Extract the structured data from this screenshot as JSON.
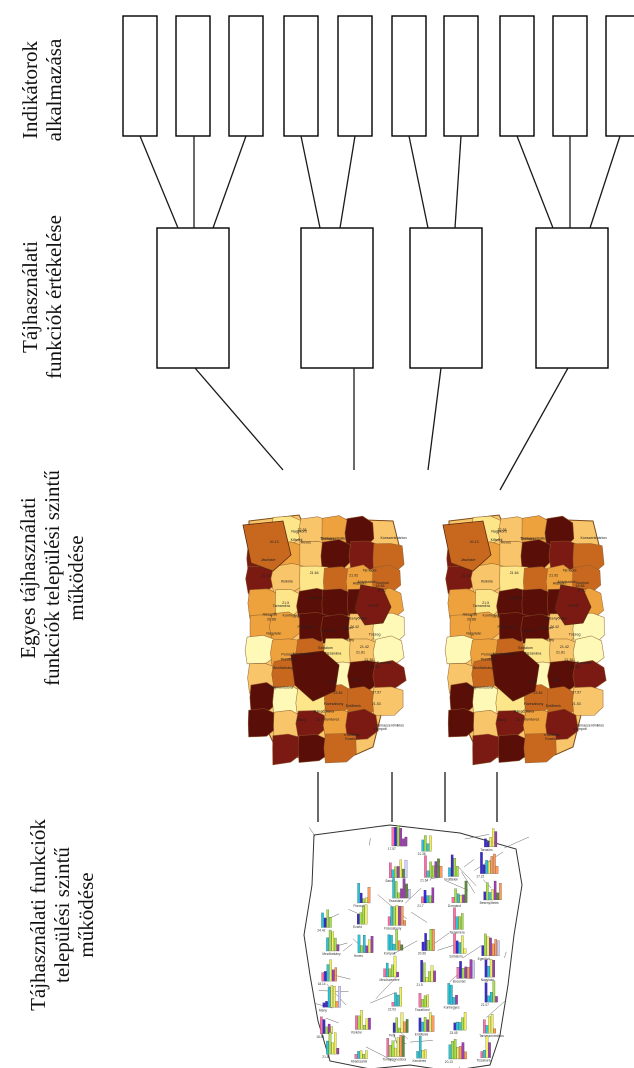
{
  "labels": {
    "indicators": [
      "Indikátorok",
      "alkalmazása"
    ],
    "evaluation": [
      "Tájhasználati",
      "funkciók értékelése"
    ],
    "maps_level": [
      "Egyes tájhasználati",
      "funkciók települési szintű",
      "működése"
    ],
    "bars_level": [
      "Tájhasználati funkciók",
      "települési szintű",
      "működése"
    ]
  },
  "map_texts": [
    "17.57",
    "21.38",
    "Tarnaörs",
    "Sarud",
    "21.64",
    "Erdőtelek",
    "17.22",
    "Poroszló",
    "Tiszanána",
    "21.7",
    "Dormánd",
    "Besenyőtelek",
    "24.42",
    "Ecséd",
    "Füzesabony",
    "Tarnaméra",
    "Mezőtárkány",
    "Heves",
    "Kompolt",
    "20.66",
    "Szihalom",
    "Egerlövő",
    "18.14",
    "Mezőszemere",
    "21.5",
    "Boconád",
    "Nagyiván",
    "Átány",
    "22.93",
    "Tiszafüred",
    "Kunhegyes",
    "21.07",
    "18.55",
    "Kisköre",
    "Pély",
    "Erdőtelek",
    "23.45",
    "Tarnaszentmiklós",
    "21.81",
    "Abádszalók",
    "Tomajmonostora",
    "Kenderes",
    "20.13",
    "Tiszabura",
    "Kőtelek",
    "21.42",
    "Nagykörű",
    "Fegyvernek",
    "22.38",
    "Jászkisér",
    "Jászapáti",
    "21.53",
    "Kunszentmárton",
    "21.92",
    "Szolnok",
    "Törökszentmiklós",
    "Alattyán",
    "19.91",
    "Tószeg",
    "Rákóczifalva",
    "Kengyel"
  ],
  "colors": {
    "line": "#1a1a1a",
    "box_stroke": "#000000",
    "map_palette": [
      "#fff9b8",
      "#fde68a",
      "#f9c56a",
      "#eea23e",
      "#c8681f",
      "#7b1a12",
      "#5a0e08"
    ],
    "bar_palette": [
      "#ff6fa8",
      "#3a2bd1",
      "#29c5d8",
      "#a7e04a",
      "#f0f060",
      "#9e3fb0",
      "#ff9b5b",
      "#5b8a3a",
      "#d0d0ff"
    ]
  }
}
